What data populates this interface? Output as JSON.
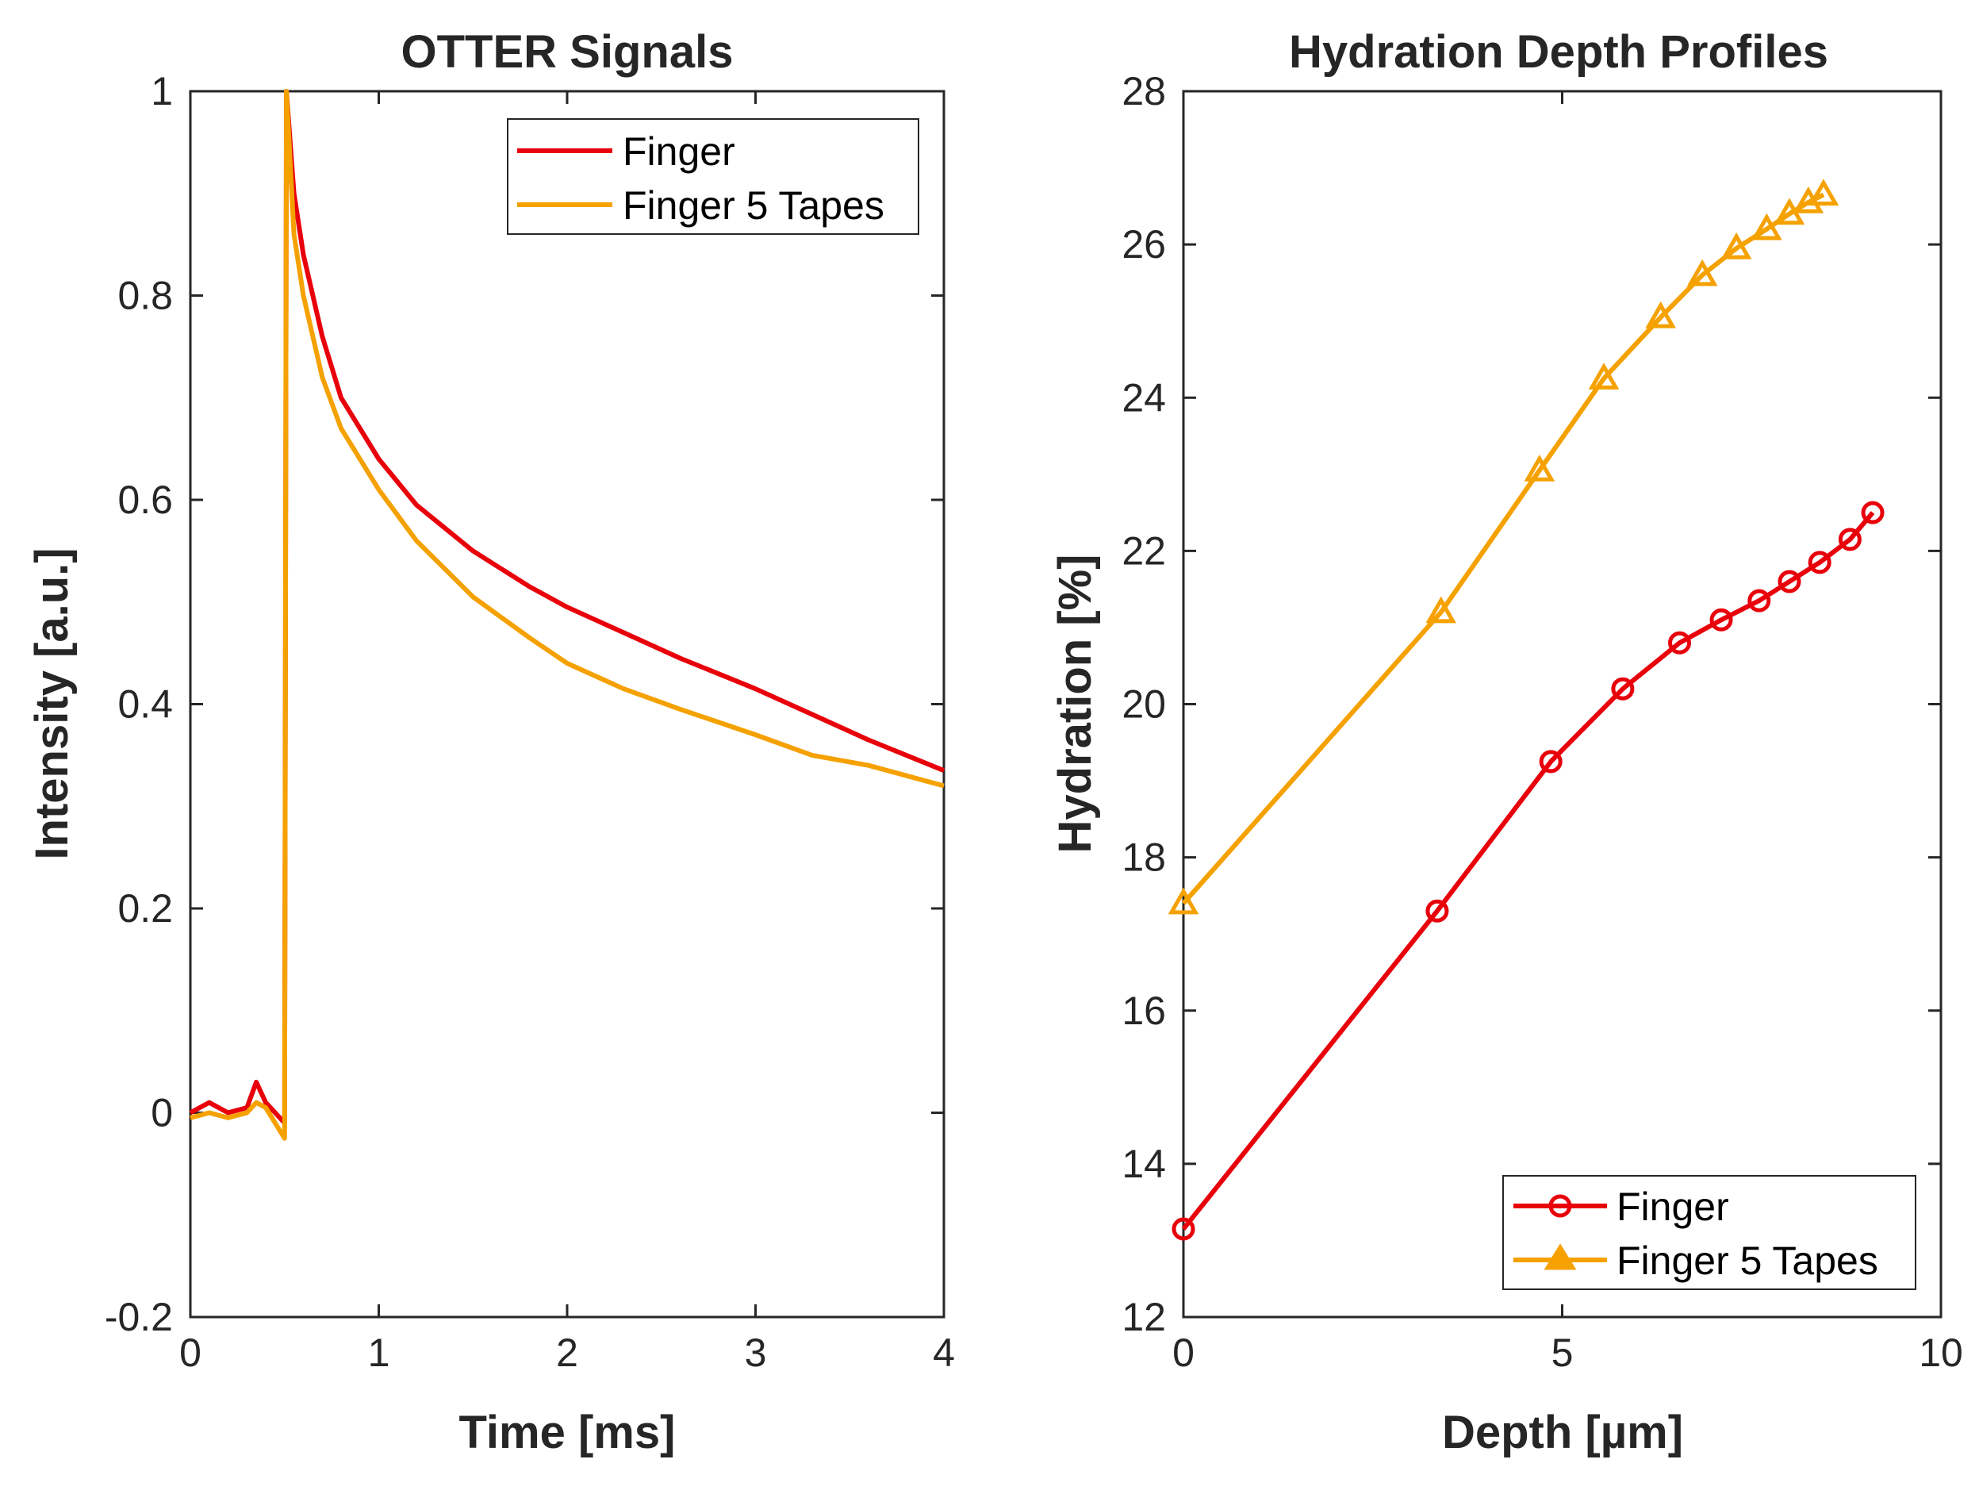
{
  "colors": {
    "finger": "#e8000b",
    "tapes": "#f5a100",
    "axis": "#262626"
  },
  "chart_data": [
    {
      "type": "line",
      "title": "OTTER Signals",
      "xlabel": "Time [ms]",
      "ylabel": "Intensity [a.u.]",
      "xlim": [
        0,
        4
      ],
      "ylim": [
        -0.2,
        1
      ],
      "xticks": [
        0,
        1,
        2,
        3,
        4
      ],
      "xtick_labels": [
        "0",
        "1",
        "2",
        "3",
        "4"
      ],
      "yticks": [
        -0.2,
        0,
        0.2,
        0.4,
        0.6,
        0.8,
        1
      ],
      "ytick_labels": [
        "-0.2",
        "0",
        "0.2",
        "0.4",
        "0.6",
        "0.8",
        "1"
      ],
      "legend_position": "top-right",
      "series": [
        {
          "name": "Finger",
          "color": "#e8000b",
          "points": [
            [
              0,
              0.0
            ],
            [
              0.1,
              0.01
            ],
            [
              0.2,
              0.0
            ],
            [
              0.3,
              0.005
            ],
            [
              0.35,
              0.03
            ],
            [
              0.4,
              0.01
            ],
            [
              0.45,
              0.0
            ],
            [
              0.5,
              -0.01
            ],
            [
              0.51,
              1.0
            ],
            [
              0.55,
              0.9
            ],
            [
              0.6,
              0.84
            ],
            [
              0.7,
              0.76
            ],
            [
              0.8,
              0.7
            ],
            [
              1.0,
              0.64
            ],
            [
              1.2,
              0.595
            ],
            [
              1.5,
              0.55
            ],
            [
              1.8,
              0.515
            ],
            [
              2.0,
              0.495
            ],
            [
              2.3,
              0.47
            ],
            [
              2.6,
              0.445
            ],
            [
              3.0,
              0.415
            ],
            [
              3.3,
              0.39
            ],
            [
              3.6,
              0.365
            ],
            [
              4.0,
              0.335
            ]
          ]
        },
        {
          "name": "Finger 5 Tapes",
          "color": "#f5a100",
          "points": [
            [
              0,
              -0.005
            ],
            [
              0.1,
              0.0
            ],
            [
              0.2,
              -0.005
            ],
            [
              0.3,
              0.0
            ],
            [
              0.35,
              0.01
            ],
            [
              0.4,
              0.005
            ],
            [
              0.45,
              -0.01
            ],
            [
              0.5,
              -0.025
            ],
            [
              0.51,
              1.0
            ],
            [
              0.55,
              0.86
            ],
            [
              0.6,
              0.8
            ],
            [
              0.7,
              0.72
            ],
            [
              0.8,
              0.67
            ],
            [
              1.0,
              0.61
            ],
            [
              1.2,
              0.56
            ],
            [
              1.5,
              0.505
            ],
            [
              1.8,
              0.465
            ],
            [
              2.0,
              0.44
            ],
            [
              2.3,
              0.415
            ],
            [
              2.6,
              0.395
            ],
            [
              3.0,
              0.37
            ],
            [
              3.3,
              0.35
            ],
            [
              3.6,
              0.34
            ],
            [
              4.0,
              0.32
            ]
          ]
        }
      ]
    },
    {
      "type": "line",
      "title": "Hydration Depth Profiles",
      "xlabel": "Depth  [µm]",
      "ylabel": "Hydration [%]",
      "xlim": [
        0,
        10
      ],
      "ylim": [
        12,
        28
      ],
      "xticks": [
        0,
        5,
        10
      ],
      "xtick_labels": [
        "0",
        "5",
        "10"
      ],
      "yticks": [
        12,
        14,
        16,
        18,
        20,
        22,
        24,
        26,
        28
      ],
      "ytick_labels": [
        "12",
        "14",
        "16",
        "18",
        "20",
        "22",
        "24",
        "26",
        "28"
      ],
      "legend_position": "bottom-right",
      "series": [
        {
          "name": "Finger",
          "color": "#e8000b",
          "marker": "circle",
          "points": [
            [
              0.0,
              13.15
            ],
            [
              3.35,
              17.3
            ],
            [
              4.85,
              19.25
            ],
            [
              5.8,
              20.2
            ],
            [
              6.55,
              20.8
            ],
            [
              7.1,
              21.1
            ],
            [
              7.6,
              21.35
            ],
            [
              8.0,
              21.6
            ],
            [
              8.4,
              21.85
            ],
            [
              8.8,
              22.15
            ],
            [
              9.1,
              22.5
            ]
          ]
        },
        {
          "name": "Finger 5 Tapes",
          "color": "#f5a100",
          "marker": "triangle",
          "points": [
            [
              0.0,
              17.4
            ],
            [
              3.4,
              21.2
            ],
            [
              4.7,
              23.05
            ],
            [
              5.55,
              24.25
            ],
            [
              6.3,
              25.05
            ],
            [
              6.85,
              25.6
            ],
            [
              7.3,
              25.95
            ],
            [
              7.7,
              26.2
            ],
            [
              8.0,
              26.4
            ],
            [
              8.25,
              26.55
            ],
            [
              8.45,
              26.65
            ]
          ]
        }
      ]
    }
  ]
}
